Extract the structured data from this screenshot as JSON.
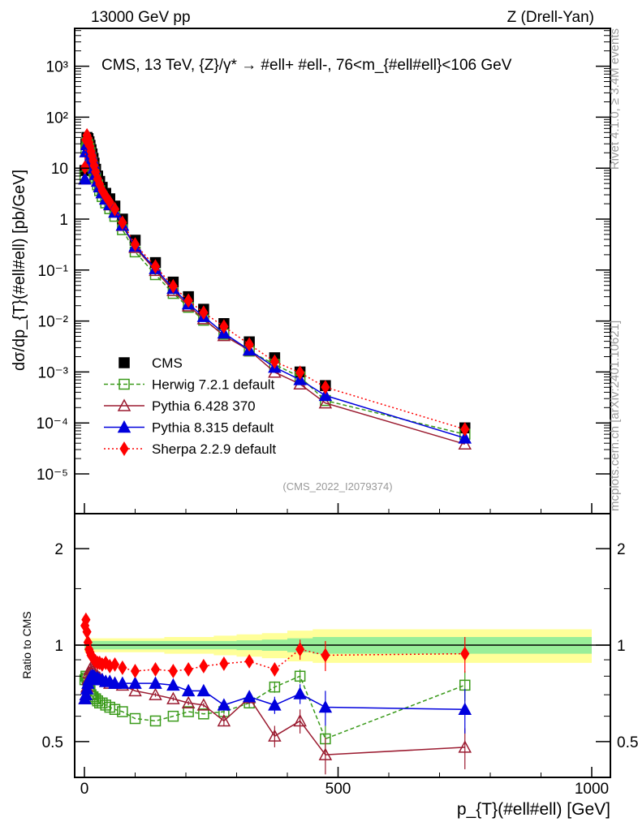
{
  "header": {
    "beam": "13000 GeV pp",
    "process": "Z (Drell-Yan)"
  },
  "side": {
    "rivet": "Rivet 4.1.0, ≥ 3.4M events",
    "mcplots": "mcplots.cern.ch [arXiv:2401.10621]"
  },
  "chart_data": {
    "type": "line",
    "title": "CMS, 13 TeV, {Z}/γ* → #ell+ #ell-, 76<m_{#ell#ell}<106 GeV",
    "analysis_id": "(CMS_2022_I2079374)",
    "xlabel": "p_{T}(#ell#ell) [GeV]",
    "ylabel": "dσ/dp_{T}(#ell#ell) [pb/GeV]",
    "ratio_ylabel": "Ratio to CMS",
    "xlim": [
      -20,
      1040
    ],
    "ylim": [
      1.7e-06,
      5600
    ],
    "ratio_ylim": [
      0.386,
      2.57
    ],
    "x_ticks": [
      "0",
      "500",
      "1000"
    ],
    "x_tick_values": [
      0,
      500,
      1000
    ],
    "y_ticks": [
      "10³",
      "10²",
      "10",
      "1",
      "10⁻¹",
      "10⁻²",
      "10⁻³",
      "10⁻⁴",
      "10⁻⁵"
    ],
    "y_tick_values": [
      1000,
      100,
      10,
      1,
      0.1,
      0.01,
      0.001,
      0.0001,
      1e-05
    ],
    "ratio_ticks": [
      "2",
      "1",
      "0.5"
    ],
    "ratio_tick_values": [
      2,
      1,
      0.5
    ],
    "x": [
      1,
      3,
      5,
      7,
      9,
      11,
      13,
      15,
      17,
      19,
      22,
      26,
      30,
      35,
      42,
      50,
      60,
      75,
      100,
      140,
      175,
      205,
      235,
      275,
      325,
      375,
      425,
      475,
      750
    ],
    "cms": [
      9,
      30,
      40,
      38,
      33,
      28,
      23,
      19,
      15.5,
      12.5,
      9.5,
      7,
      5.5,
      4.2,
      3.2,
      2.5,
      1.8,
      1.0,
      0.385,
      0.14,
      0.058,
      0.03,
      0.017,
      0.0089,
      0.0039,
      0.0019,
      0.001,
      0.00054,
      8e-05
    ],
    "band_stat": [
      0.03,
      0.03,
      0.03,
      0.03,
      0.03,
      0.03,
      0.03,
      0.03,
      0.03,
      0.03,
      0.03,
      0.03,
      0.03,
      0.03,
      0.03,
      0.03,
      0.03,
      0.03,
      0.03,
      0.03,
      0.03,
      0.03,
      0.03,
      0.03,
      0.035,
      0.04,
      0.05,
      0.06,
      0.06
    ],
    "band_total": [
      0.05,
      0.05,
      0.05,
      0.05,
      0.05,
      0.05,
      0.05,
      0.05,
      0.05,
      0.05,
      0.05,
      0.05,
      0.05,
      0.05,
      0.05,
      0.05,
      0.05,
      0.05,
      0.05,
      0.05,
      0.06,
      0.06,
      0.06,
      0.07,
      0.08,
      0.09,
      0.11,
      0.12,
      0.12
    ],
    "series": [
      {
        "name": "CMS",
        "color": "#000000",
        "marker": "square-filled"
      },
      {
        "name": "Herwig 7.2.1 default",
        "color": "#3a9a1a",
        "marker": "square-open",
        "dash": "5,3",
        "ratio": [
          0.78,
          0.8,
          0.79,
          0.76,
          0.74,
          0.72,
          0.7,
          0.69,
          0.69,
          0.68,
          0.68,
          0.67,
          0.66,
          0.66,
          0.65,
          0.64,
          0.63,
          0.62,
          0.59,
          0.58,
          0.6,
          0.62,
          0.61,
          0.62,
          0.66,
          0.74,
          0.8,
          0.51,
          0.75
        ],
        "err": [
          0,
          0,
          0,
          0,
          0,
          0,
          0,
          0,
          0,
          0,
          0,
          0,
          0,
          0,
          0,
          0,
          0,
          0,
          0,
          0,
          0,
          0,
          0,
          0.01,
          0.02,
          0.03,
          0.04,
          0.05,
          0.08
        ]
      },
      {
        "name": "Pythia 6.428 370",
        "color": "#9b1b30",
        "marker": "triangle-open",
        "dash": "",
        "ratio": [
          0.68,
          0.7,
          0.74,
          0.78,
          0.82,
          0.84,
          0.85,
          0.84,
          0.83,
          0.82,
          0.81,
          0.8,
          0.79,
          0.78,
          0.77,
          0.76,
          0.76,
          0.75,
          0.72,
          0.7,
          0.68,
          0.66,
          0.65,
          0.58,
          0.685,
          0.52,
          0.58,
          0.455,
          0.48
        ],
        "err": [
          0,
          0,
          0,
          0,
          0,
          0,
          0,
          0,
          0,
          0,
          0,
          0,
          0,
          0,
          0,
          0,
          0,
          0,
          0,
          0.01,
          0.01,
          0.01,
          0.01,
          0.02,
          0.03,
          0.04,
          0.05,
          0.06,
          0.07
        ]
      },
      {
        "name": "Pythia 8.315 default",
        "color": "#0000dd",
        "marker": "triangle-filled",
        "dash": "",
        "ratio": [
          0.68,
          0.7,
          0.73,
          0.76,
          0.78,
          0.79,
          0.8,
          0.8,
          0.8,
          0.8,
          0.79,
          0.79,
          0.78,
          0.78,
          0.77,
          0.77,
          0.76,
          0.76,
          0.76,
          0.76,
          0.75,
          0.72,
          0.72,
          0.65,
          0.69,
          0.65,
          0.705,
          0.64,
          0.63
        ],
        "err": [
          0,
          0,
          0,
          0,
          0,
          0,
          0,
          0,
          0,
          0,
          0,
          0,
          0,
          0,
          0,
          0,
          0,
          0,
          0,
          0.01,
          0.01,
          0.01,
          0.01,
          0.02,
          0.03,
          0.04,
          0.05,
          0.08,
          0.1
        ]
      },
      {
        "name": "Sherpa 2.2.9 default",
        "color": "#ff0000",
        "marker": "diamond-filled",
        "dash": "2,3",
        "ratio": [
          1.15,
          1.2,
          1.1,
          1.02,
          0.97,
          0.95,
          0.93,
          0.92,
          0.91,
          0.9,
          0.89,
          0.88,
          0.88,
          0.87,
          0.88,
          0.86,
          0.87,
          0.85,
          0.83,
          0.84,
          0.83,
          0.84,
          0.86,
          0.875,
          0.89,
          0.84,
          0.97,
          0.93,
          0.94
        ],
        "err": [
          0,
          0,
          0,
          0,
          0,
          0,
          0,
          0,
          0,
          0,
          0,
          0,
          0,
          0,
          0,
          0,
          0,
          0,
          0,
          0.01,
          0.01,
          0.01,
          0.01,
          0.02,
          0.03,
          0.04,
          0.07,
          0.1,
          0.12
        ]
      }
    ]
  }
}
